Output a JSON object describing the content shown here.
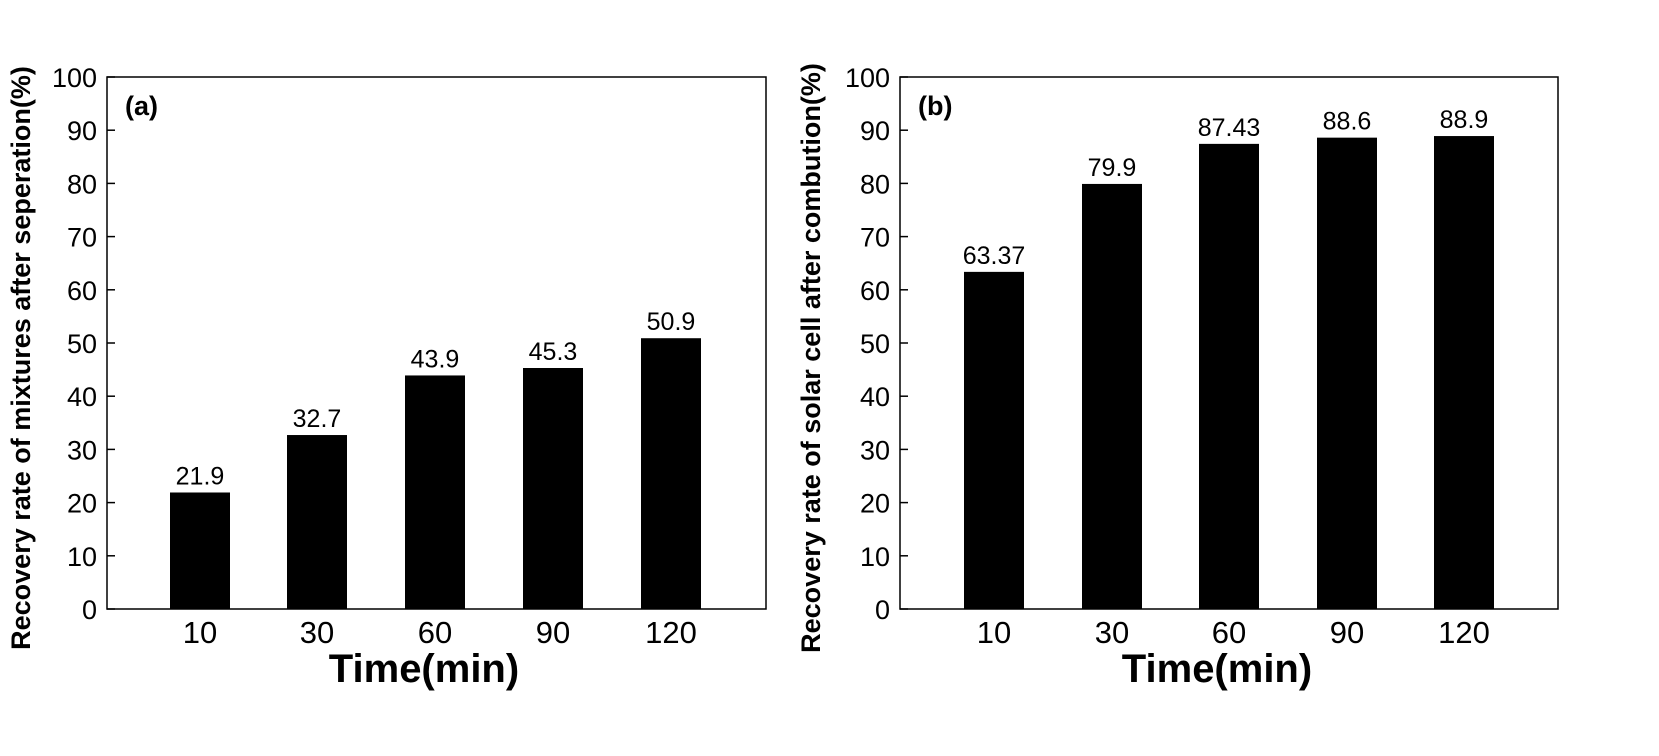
{
  "colors": {
    "bar": "#000000",
    "axis": "#000000",
    "background": "#ffffff"
  },
  "chart_data": [
    {
      "type": "bar",
      "panel_label": "(a)",
      "categories": [
        "10",
        "30",
        "60",
        "90",
        "120"
      ],
      "values": [
        21.9,
        32.7,
        43.9,
        45.3,
        50.9
      ],
      "value_labels": [
        "21.9",
        "32.7",
        "43.9",
        "45.3",
        "50.9"
      ],
      "xlabel": "Time(min)",
      "ylabel": "Recovery rate of mixtures after seperation(%)",
      "ylim": [
        0,
        100
      ],
      "yticks": [
        0,
        10,
        20,
        30,
        40,
        50,
        60,
        70,
        80,
        90,
        100
      ],
      "grid": false,
      "legend": "none"
    },
    {
      "type": "bar",
      "panel_label": "(b)",
      "categories": [
        "10",
        "30",
        "60",
        "90",
        "120"
      ],
      "values": [
        63.37,
        79.9,
        87.43,
        88.6,
        88.9
      ],
      "value_labels": [
        "63.37",
        "79.9",
        "87.43",
        "88.6",
        "88.9"
      ],
      "xlabel": "Time(min)",
      "ylabel": "Recovery rate of solar cell after combution(%)",
      "ylim": [
        0,
        100
      ],
      "yticks": [
        0,
        10,
        20,
        30,
        40,
        50,
        60,
        70,
        80,
        90,
        100
      ],
      "grid": false,
      "legend": "none"
    }
  ]
}
